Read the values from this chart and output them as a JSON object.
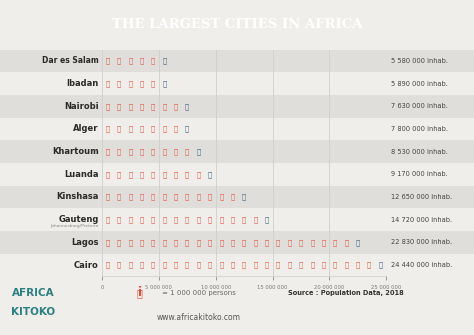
{
  "title": "THE LARGEST CITIES IN AFRICA",
  "title_bg": "#e8503a",
  "title_color": "#ffffff",
  "bg_color": "#f0eeea",
  "row_colors_odd": "#f0eeea",
  "row_colors_even": "#e0deda",
  "cities": [
    "Cairo",
    "Lagos",
    "Gauteng",
    "Kinshasa",
    "Luanda",
    "Khartoum",
    "Alger",
    "Nairobi",
    "Ibadan",
    "Dar es Salam"
  ],
  "populations": [
    24440000,
    22830000,
    14720000,
    12650000,
    9170000,
    8530000,
    7800000,
    7630000,
    5890000,
    5580000
  ],
  "pop_labels": [
    "24 440 000 inhab.",
    "22 830 000 inhab.",
    "14 720 000 inhab.",
    "12 650 000 inhab.",
    "9 170 000 inhab.",
    "8 530 000 inhab.",
    "7 800 000 inhab.",
    "7 630 000 inhab.",
    "5 890 000 inhab.",
    "5 580 000 inhab."
  ],
  "icon_color": "#e8503a",
  "partial_icon_color": "#3a6080",
  "unit": 1000000,
  "xlim": [
    0,
    25000000
  ],
  "xticks": [
    0,
    5000000,
    10000000,
    15000000,
    20000000,
    25000000
  ],
  "xtick_labels": [
    "0",
    "5 000 000",
    "10 000 000",
    "15 000 000",
    "20 000 000",
    "25 000 000"
  ],
  "footer_source": "Source : Population Data, 2018",
  "footer_url": "www.africakitoko.com",
  "footer_legend": "= 1 000 000 persons",
  "footer_bg": "#ffffff",
  "grid_color": "#d0ceca",
  "label_color": "#2a2a2a",
  "tick_color": "#777777",
  "gauteng_sub": "Johannesburg/Pretoria",
  "africa_kitoko_color": "#e8503a",
  "africa_kitoko_teal": "#2a8080"
}
